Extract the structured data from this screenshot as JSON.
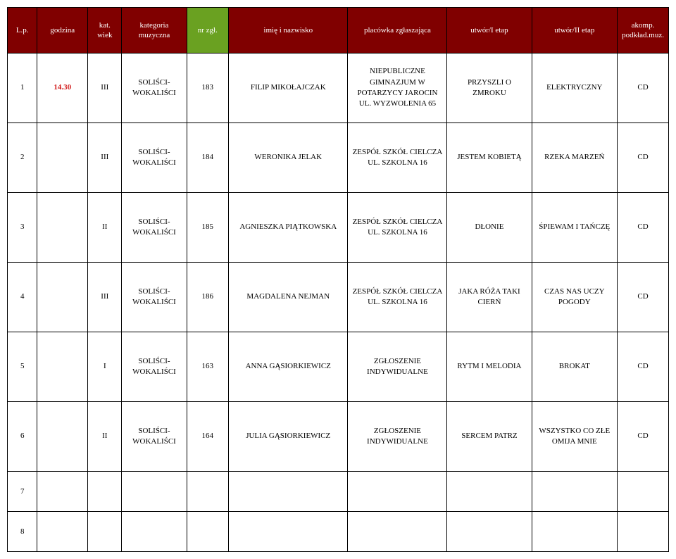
{
  "headers": {
    "lp": "L.p.",
    "godzina": "godzina",
    "kat_wiek": "kat.\nwiek",
    "kategoria_muzyczna": "kategoria\nmuzyczna",
    "nr_zgl": "nr zgł.",
    "imie_nazwisko": "imię i nazwisko",
    "placowka": "placówka zgłaszająca",
    "utwor1": "utwór/I etap",
    "utwor2": "utwór/II etap",
    "akomp": "akomp.\npodkład.muz."
  },
  "header_colors": {
    "default": "#800000",
    "nr_zgl": "#6aa121"
  },
  "rows": [
    {
      "lp": "1",
      "godzina": "14.30",
      "kat_wiek": "III",
      "kategoria": "SOLIŚCI-\nWOKALIŚCI",
      "nr": "183",
      "nazwisko": "FILIP MIKOŁAJCZAK",
      "placowka": "NIEPUBLICZNE GIMNAZJUM W POTARZYCY JAROCIN UL. WYZWOLENIA 65",
      "u1": "PRZYSZLI O ZMROKU",
      "u2": "ELEKTRYCZNY",
      "ak": "CD"
    },
    {
      "lp": "2",
      "godzina": "",
      "kat_wiek": "III",
      "kategoria": "SOLIŚCI-\nWOKALIŚCI",
      "nr": "184",
      "nazwisko": "WERONIKA JELAK",
      "placowka": "ZESPÓŁ SZKÓŁ CIELCZA UL. SZKOLNA 16",
      "u1": "JESTEM KOBIETĄ",
      "u2": "RZEKA MARZEŃ",
      "ak": "CD"
    },
    {
      "lp": "3",
      "godzina": "",
      "kat_wiek": "II",
      "kategoria": "SOLIŚCI-\nWOKALIŚCI",
      "nr": "185",
      "nazwisko": "AGNIESZKA PIĄTKOWSKA",
      "placowka": "ZESPÓŁ SZKÓŁ CIELCZA UL. SZKOLNA 16",
      "u1": "DŁONIE",
      "u2": "ŚPIEWAM I TAŃCZĘ",
      "ak": "CD"
    },
    {
      "lp": "4",
      "godzina": "",
      "kat_wiek": "III",
      "kategoria": "SOLIŚCI-\nWOKALIŚCI",
      "nr": "186",
      "nazwisko": "MAGDALENA NEJMAN",
      "placowka": "ZESPÓŁ SZKÓŁ CIELCZA UL. SZKOLNA 16",
      "u1": "JAKA RÓŻA TAKI CIERŃ",
      "u2": "CZAS NAS UCZY POGODY",
      "ak": "CD"
    },
    {
      "lp": "5",
      "godzina": "",
      "kat_wiek": "I",
      "kategoria": "SOLIŚCI-\nWOKALIŚCI",
      "nr": "163",
      "nazwisko": "ANNA GĄSIORKIEWICZ",
      "placowka": "ZGŁOSZENIE INDYWIDUALNE",
      "u1": "RYTM I MELODIA",
      "u2": "BROKAT",
      "ak": "CD"
    },
    {
      "lp": "6",
      "godzina": "",
      "kat_wiek": "II",
      "kategoria": "SOLIŚCI-\nWOKALIŚCI",
      "nr": "164",
      "nazwisko": "JULIA GĄSIORKIEWICZ",
      "placowka": "ZGŁOSZENIE INDYWIDUALNE",
      "u1": "SERCEM PATRZ",
      "u2": "WSZYSTKO CO ZŁE OMIJA MNIE",
      "ak": "CD"
    }
  ],
  "empty_rows": [
    "7",
    "8"
  ]
}
